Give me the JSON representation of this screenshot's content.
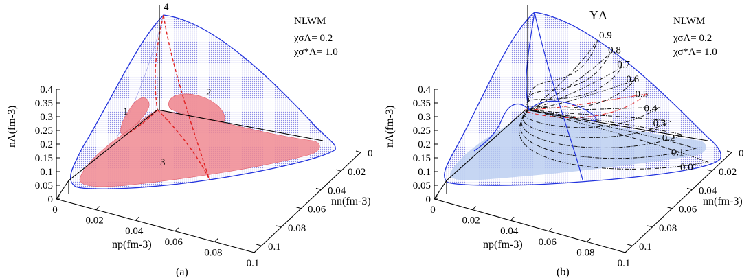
{
  "figure": {
    "caption_a": "(a)",
    "caption_b": "(b)"
  },
  "colors": {
    "envelope": "#2233dd",
    "envelope_fill": "#c9c9f4",
    "region_fill": "#f08a92",
    "region_dash": "#e02020",
    "floor_fill": "#b8ccf0",
    "contour": "#111111",
    "highlight_contour": "#e02020"
  },
  "chart_data": [
    {
      "type": "surface3d",
      "panel": "a",
      "model": "NLWM",
      "params": [
        "χσΛ= 0.2",
        "χσ*Λ= 1.0"
      ],
      "xlabel": "np(fm-3)",
      "ylabel": "nn(fm-3)",
      "zlabel": "nΛ(fm-3)",
      "x_ticks": [
        "0",
        "0.02",
        "0.04",
        "0.06",
        "0.08",
        "0.1"
      ],
      "y_ticks": [
        "0",
        "0.02",
        "0.04",
        "0.06",
        "0.08",
        "0.1"
      ],
      "z_ticks": [
        "0",
        "0.05",
        "0.1",
        "0.15",
        "0.2",
        "0.25",
        "0.3",
        "0.35",
        "0.4"
      ],
      "xlim": [
        0,
        0.1
      ],
      "ylim": [
        0,
        0.1
      ],
      "zlim": [
        0,
        0.4
      ],
      "region_labels": [
        "1",
        "2",
        "3",
        "4"
      ]
    },
    {
      "type": "surface3d",
      "panel": "b",
      "model": "NLWM",
      "params": [
        "χσΛ= 0.2",
        "χσ*Λ= 1.0"
      ],
      "title": "YΛ",
      "xlabel": "np(fm-3)",
      "ylabel": "nn(fm-3)",
      "zlabel": "nΛ(fm-3)",
      "x_ticks": [
        "0",
        "0.02",
        "0.04",
        "0.06",
        "0.08",
        "0.1"
      ],
      "y_ticks": [
        "0",
        "0.02",
        "0.04",
        "0.06",
        "0.08",
        "0.1"
      ],
      "z_ticks": [
        "0",
        "0.05",
        "0.1",
        "0.15",
        "0.2",
        "0.25",
        "0.3",
        "0.35",
        "0.4"
      ],
      "xlim": [
        0,
        0.1
      ],
      "ylim": [
        0,
        0.1
      ],
      "zlim": [
        0,
        0.4
      ],
      "contour_levels": [
        0.0,
        0.1,
        0.2,
        0.3,
        0.4,
        0.5,
        0.6,
        0.7,
        0.8,
        0.9
      ],
      "contour_labels": [
        "0.0",
        "0.1",
        "0.2",
        "0.3",
        "0.4",
        "0.5",
        "0.6",
        "0.7",
        "0.8",
        "0.9"
      ],
      "highlight_level": "0.5"
    }
  ]
}
